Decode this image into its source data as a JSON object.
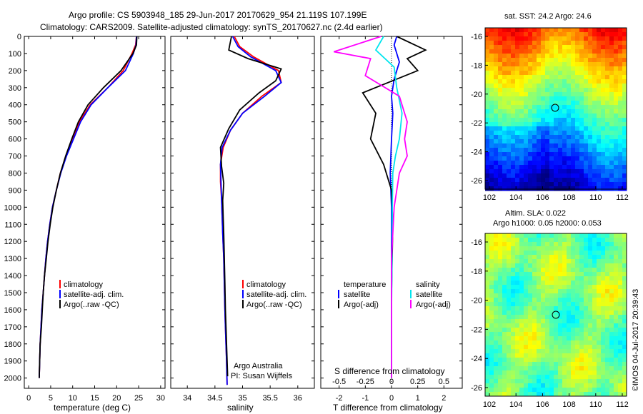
{
  "header": {
    "line1": "Argo profile: CS 5903948_185 29-Jun-2017 20170629_954 21.119S 107.199E",
    "line2": "Climatology: CARS2009. Satellite-adjusted climatology: synTS_20170627.nc (2.4d earlier)"
  },
  "colors": {
    "climatology": "#ff0000",
    "satellite": "#0000ff",
    "argo": "#000000",
    "sal_satellite": "#00e5ee",
    "sal_argo": "#ff00ff"
  },
  "chart_data": [
    {
      "type": "line",
      "xlabel": "temperature (deg C)",
      "ylabel": "",
      "xlim": [
        -1,
        31
      ],
      "ylim": [
        2060,
        0
      ],
      "xticks": [
        "0",
        "5",
        "10",
        "15",
        "20",
        "25",
        "30"
      ],
      "yticks": [
        "0",
        "100",
        "200",
        "300",
        "400",
        "500",
        "600",
        "700",
        "800",
        "900",
        "1000",
        "1100",
        "1200",
        "1300",
        "1400",
        "1500",
        "1600",
        "1700",
        "1800",
        "1900",
        "2000"
      ],
      "legend": [
        "climatology",
        "satellite-adj. clim.",
        "Argo(..raw -QC)"
      ],
      "series": [
        {
          "name": "climatology",
          "x": [
            24.5,
            24.3,
            23.5,
            21.5,
            18,
            14,
            11.5,
            10,
            8.5,
            7.2,
            6.3,
            5.4,
            4.8,
            4.3,
            3.9,
            3.6,
            3.3,
            3,
            2.8,
            2.6,
            2.4
          ],
          "y": [
            0,
            50,
            100,
            200,
            300,
            400,
            500,
            600,
            700,
            800,
            900,
            1000,
            1100,
            1200,
            1300,
            1400,
            1500,
            1600,
            1700,
            1800,
            2000
          ]
        },
        {
          "name": "satellite-adj. clim.",
          "x": [
            24.5,
            24.4,
            23.8,
            22,
            18,
            14.2,
            11.8,
            10.2,
            8.6,
            7.3,
            6.3,
            5.4,
            4.8,
            4.3,
            3.9,
            3.6,
            3.3,
            3,
            2.8,
            2.6,
            2.4
          ],
          "y": [
            0,
            50,
            100,
            200,
            300,
            400,
            500,
            600,
            700,
            800,
            900,
            1000,
            1100,
            1200,
            1300,
            1400,
            1500,
            1600,
            1700,
            1800,
            2000
          ]
        },
        {
          "name": "Argo(..raw -QC)",
          "x": [
            24.6,
            24.5,
            23.7,
            21,
            17,
            13.5,
            11.3,
            9.8,
            8.4,
            7.2,
            6.3,
            5.5,
            4.9,
            4.4,
            4,
            3.6,
            3.3,
            3.1,
            2.9,
            2.6,
            2.4
          ],
          "y": [
            0,
            50,
            100,
            200,
            300,
            400,
            500,
            600,
            700,
            800,
            900,
            1000,
            1100,
            1200,
            1300,
            1400,
            1500,
            1600,
            1700,
            1800,
            2000
          ]
        }
      ]
    },
    {
      "type": "line",
      "xlabel": "salinity",
      "xlim": [
        33.7,
        36.3
      ],
      "ylim": [
        2060,
        0
      ],
      "xticks": [
        "34",
        "34.5",
        "35",
        "35.5",
        "36"
      ],
      "legend": [
        "climatology",
        "satellite-adj. clim.",
        "Argo(..raw -QC)"
      ],
      "annotation": [
        "Argo Australia",
        "PI: Susan Wijffels"
      ],
      "series": [
        {
          "name": "climatology",
          "x": [
            34.85,
            34.95,
            35.2,
            35.65,
            35.7,
            35.35,
            35.0,
            34.78,
            34.65,
            34.6,
            34.6,
            34.62,
            34.63,
            34.64,
            34.66,
            34.67,
            34.68,
            34.69,
            34.7,
            34.71,
            34.72
          ],
          "y": [
            0,
            60,
            120,
            200,
            270,
            350,
            450,
            550,
            650,
            750,
            850,
            950,
            1050,
            1150,
            1300,
            1450,
            1600,
            1700,
            1800,
            1900,
            2040
          ]
        },
        {
          "name": "satellite-adj. clim.",
          "x": [
            34.82,
            34.92,
            35.15,
            35.6,
            35.7,
            35.4,
            35.0,
            34.78,
            34.63,
            34.6,
            34.61,
            34.62,
            34.63,
            34.64,
            34.66,
            34.67,
            34.68,
            34.69,
            34.7,
            34.71,
            34.72
          ],
          "y": [
            0,
            60,
            120,
            200,
            270,
            350,
            450,
            550,
            650,
            750,
            850,
            950,
            1050,
            1150,
            1300,
            1450,
            1600,
            1700,
            1800,
            1900,
            2040
          ]
        },
        {
          "name": "Argo(..raw -QC)",
          "x": [
            34.8,
            34.75,
            35.1,
            35.7,
            35.6,
            35.3,
            34.95,
            34.75,
            34.6,
            34.62,
            34.66,
            34.64,
            34.65,
            34.66,
            34.67,
            34.68,
            34.69,
            34.7,
            34.71,
            34.72,
            34.73
          ],
          "y": [
            0,
            80,
            130,
            190,
            260,
            330,
            430,
            540,
            650,
            760,
            860,
            960,
            1060,
            1160,
            1300,
            1450,
            1600,
            1700,
            1800,
            1900,
            1990
          ]
        }
      ]
    },
    {
      "type": "line",
      "xlabel": "T difference from climatology",
      "xlim": [
        -2.7,
        2.7
      ],
      "ylim": [
        2060,
        0
      ],
      "top_label": "S difference from climatology",
      "xticks": [
        "-2",
        "-1",
        "0",
        "1",
        "2"
      ],
      "top_ticks": [
        "-0.5",
        "-0.25",
        "0",
        "0.25",
        "0.5"
      ],
      "legend_titles": [
        "temperature",
        "salinity"
      ],
      "legend": [
        "satellite",
        "Argo(-adj)",
        "satellite",
        "Argo(-adj)"
      ],
      "series": [
        {
          "name": "satellite",
          "x": [
            0.2,
            0.1,
            0.3,
            0.1,
            0,
            0.05,
            0,
            -0.05,
            0,
            0,
            0,
            0
          ],
          "y": [
            0,
            50,
            150,
            250,
            350,
            450,
            600,
            800,
            1000,
            1300,
            1600,
            2000
          ]
        },
        {
          "name": "Argo(-adj)",
          "x": [
            0.2,
            1.3,
            0.6,
            1.0,
            -1.1,
            -0.6,
            -0.8,
            -0.3,
            0,
            0.05,
            0,
            0
          ],
          "y": [
            0,
            80,
            130,
            200,
            330,
            450,
            600,
            750,
            900,
            1100,
            1500,
            2000
          ]
        },
        {
          "name": "satellite",
          "x": [
            -0.3,
            -0.6,
            0.1,
            0.2,
            0.4,
            0.3,
            0.15,
            0.05,
            0.03,
            0.02,
            0,
            0
          ],
          "y": [
            0,
            80,
            180,
            300,
            450,
            600,
            700,
            800,
            1000,
            1300,
            1600,
            2000
          ]
        },
        {
          "name": "Argo(-adj)",
          "x": [
            -0.4,
            -2.2,
            -0.8,
            -1.0,
            0.3,
            0.6,
            0.5,
            0.6,
            0.3,
            0.1,
            0,
            0
          ],
          "y": [
            0,
            90,
            130,
            230,
            350,
            500,
            600,
            700,
            800,
            1000,
            1300,
            2000
          ]
        }
      ]
    }
  ],
  "maps": {
    "sst": {
      "title": "sat. SST: 24.2 Argo: 24.6",
      "xticks": [
        "102",
        "104",
        "106",
        "108",
        "110",
        "112"
      ],
      "yticks": [
        "-16",
        "-18",
        "-20",
        "-22",
        "-24",
        "-26"
      ],
      "marker_lon": 107.2,
      "marker_lat": -21.1
    },
    "sla": {
      "title1": "Altim. SLA: 0.022",
      "title2": "Argo h1000: 0.05 h2000: 0.053",
      "xticks": [
        "102",
        "104",
        "106",
        "108",
        "110",
        "112"
      ],
      "yticks": [
        "-16",
        "-18",
        "-20",
        "-22",
        "-24",
        "-26"
      ],
      "marker_lon": 107.2,
      "marker_lat": -21.1
    }
  },
  "side_text": "©IMOS 04-Jul-2017 20:39:43"
}
